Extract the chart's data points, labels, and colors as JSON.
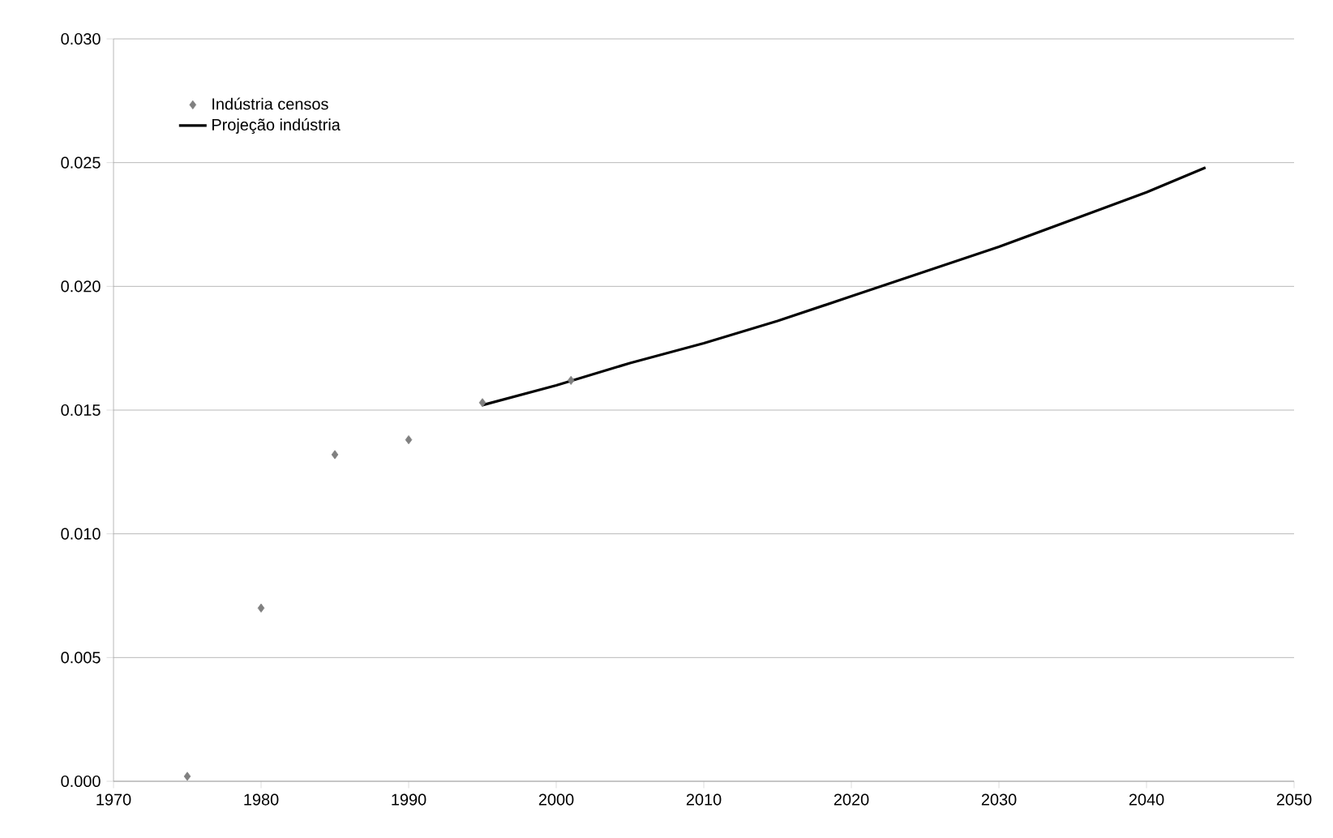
{
  "chart_data": {
    "type": "scatter",
    "xlim": [
      1970,
      2050
    ],
    "xticks": [
      1970,
      1980,
      1990,
      2000,
      2010,
      2020,
      2030,
      2040,
      2050
    ],
    "ylim": [
      0,
      0.03
    ],
    "yticks": [
      {
        "value": 0,
        "label": "0.000"
      },
      {
        "value": 0.005,
        "label": "0.005"
      },
      {
        "value": 0.01,
        "label": "0.010"
      },
      {
        "value": 0.015,
        "label": "0.015"
      },
      {
        "value": 0.02,
        "label": "0.020"
      },
      {
        "value": 0.025,
        "label": "0.025"
      },
      {
        "value": 0.03,
        "label": "0.030"
      }
    ],
    "grid": "y",
    "legend": "top left",
    "marker": "diamond",
    "series": [
      {
        "name": "Indústria censos",
        "color": "#808080",
        "x": [
          1975,
          1980,
          1985,
          1990,
          1995,
          2001
        ],
        "values": [
          0.0002,
          0.007,
          0.0132,
          0.0138,
          0.0153,
          0.0162
        ]
      },
      {
        "name": "Projeção indústria",
        "type": "line",
        "marker": "none",
        "color": "#000000",
        "x": [
          1995,
          2000,
          2005,
          2010,
          2015,
          2020,
          2025,
          2030,
          2035,
          2040,
          2044
        ],
        "values": [
          0.0152,
          0.016,
          0.0169,
          0.0177,
          0.0186,
          0.0196,
          0.0206,
          0.0216,
          0.0227,
          0.0238,
          0.0248
        ]
      }
    ]
  }
}
